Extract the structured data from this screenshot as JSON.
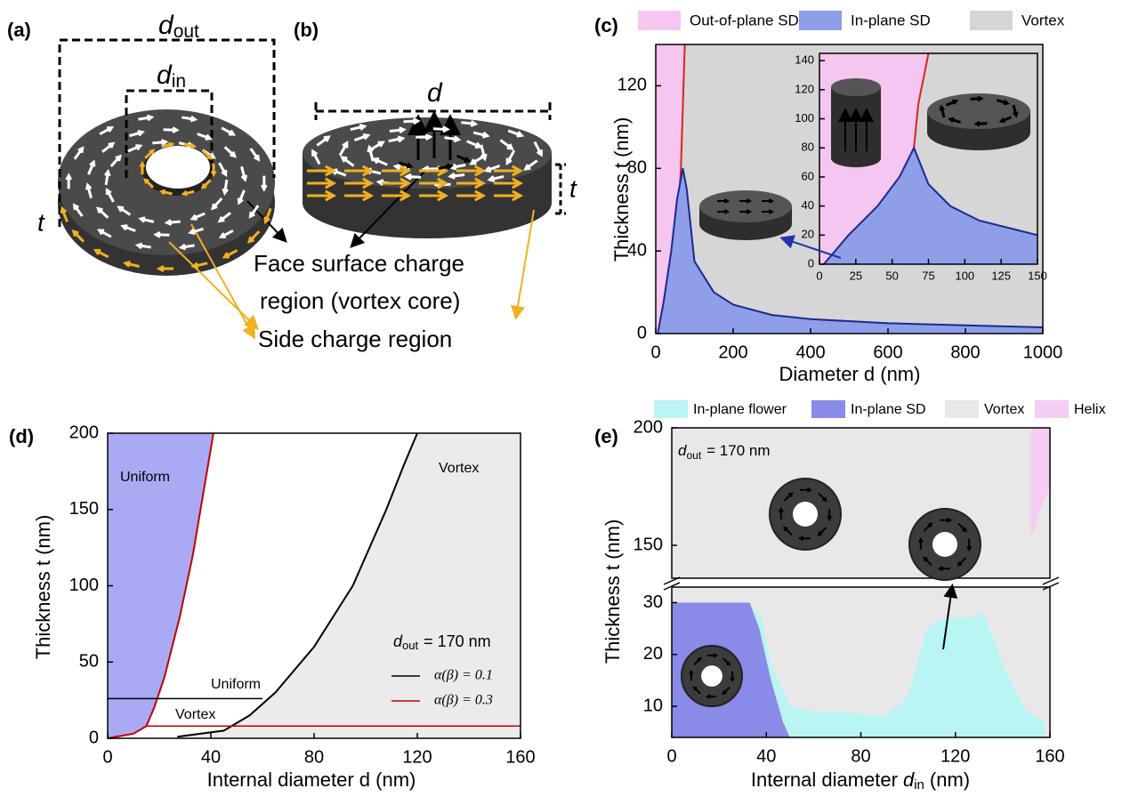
{
  "panel_a": {
    "label": "(a)",
    "outer_symbol": "d",
    "outer_subscript": "out",
    "inner_symbol": "d",
    "inner_subscript": "in",
    "thickness": "t"
  },
  "panel_b": {
    "label": "(b)",
    "diameter": "d",
    "thickness": "t"
  },
  "annotations": {
    "face_charge_line1": "Face surface charge",
    "face_charge_line2": "region (vortex core)",
    "side_charge": "Side charge region"
  },
  "chart_data": [
    {
      "type": "area",
      "label": "(c)",
      "xlabel": "Diameter d (nm)",
      "ylabel": "Thickness t (nm)",
      "xlim": [
        0,
        1000
      ],
      "ylim": [
        0,
        140
      ],
      "xticks": [
        0,
        200,
        400,
        600,
        800,
        1000
      ],
      "yticks": [
        0,
        40,
        80,
        120
      ],
      "series": [
        {
          "name": "Out-of-plane SD",
          "color": "#f5c6ef",
          "line_color": "#dd2222",
          "fill": "left",
          "x": [
            25,
            40,
            55,
            65,
            70,
            75
          ],
          "values": [
            0,
            20,
            50,
            80,
            110,
            140
          ]
        },
        {
          "name": "In-plane SD",
          "color": "#8e9ee9",
          "line_color": "#1b2a8c",
          "fill": "below",
          "x": [
            5,
            20,
            40,
            55,
            70,
            80,
            100,
            150,
            200,
            300,
            400,
            600,
            800,
            1000
          ],
          "values": [
            0,
            15,
            40,
            65,
            80,
            70,
            35,
            20,
            14,
            9,
            7,
            5,
            4,
            3
          ]
        },
        {
          "name": "Vortex",
          "color": "#d6d6d6",
          "fill": "background"
        }
      ],
      "inset": {
        "xlim": [
          0,
          150
        ],
        "ylim": [
          0,
          145
        ],
        "xticks": [
          0,
          25,
          50,
          75,
          100,
          125,
          150
        ],
        "yticks": [
          0,
          20,
          40,
          60,
          80,
          100,
          120,
          140
        ],
        "series": [
          {
            "color": "#d6d6d6",
            "fill": "background"
          },
          {
            "color": "#f5c6ef",
            "line_color": "#dd2222",
            "fill": "left",
            "x": [
              60,
              65,
              68,
              72,
              75
            ],
            "values": [
              0,
              80,
              110,
              130,
              145
            ]
          },
          {
            "color": "#8e9ee9",
            "line_color": "#1b2a8c",
            "fill": "below",
            "x": [
              3,
              20,
              40,
              55,
              65,
              75,
              90,
              110,
              130,
              150
            ],
            "values": [
              0,
              20,
              40,
              60,
              80,
              55,
              40,
              30,
              25,
              20
            ]
          }
        ]
      }
    },
    {
      "type": "line",
      "label": "(d)",
      "xlabel": "Internal diameter d (nm)",
      "ylabel": "Thickness t (nm)",
      "xlim": [
        0,
        160
      ],
      "ylim": [
        0,
        200
      ],
      "xticks": [
        0,
        40,
        80,
        120,
        160
      ],
      "yticks": [
        0,
        50,
        100,
        150,
        200
      ],
      "series": [
        {
          "name": "α(β) = 0.1",
          "color": "#000000",
          "fill": "right",
          "fill_color": "#ebebeb",
          "x": [
            27,
            45,
            55,
            65,
            80,
            95,
            108,
            115,
            120
          ],
          "values": [
            1,
            5,
            15,
            30,
            60,
            100,
            150,
            180,
            200
          ]
        },
        {
          "name": "α(β) = 0.3",
          "color": "#c00000",
          "fill": "left",
          "fill_color": "#a9aaf3",
          "x": [
            0,
            10,
            15,
            18,
            22,
            28,
            33,
            38,
            41
          ],
          "values": [
            0,
            3,
            8,
            20,
            40,
            80,
            120,
            170,
            200
          ]
        }
      ],
      "reference_lines": [
        {
          "color": "#000000",
          "x": [
            0,
            60
          ],
          "values": [
            26,
            26
          ]
        },
        {
          "color": "#c00000",
          "x": [
            15,
            160
          ],
          "values": [
            8,
            8
          ]
        }
      ],
      "annotations": [
        "Uniform",
        "Vortex",
        "Uniform",
        "Vortex"
      ],
      "d_out": {
        "symbol": "d",
        "subscript": "out",
        "text": "= 170 nm"
      }
    },
    {
      "type": "area",
      "label": "(e)",
      "xlabel": [
        "Internal diameter",
        "d",
        "in",
        "(nm)"
      ],
      "ylabel": "Thickness t (nm)",
      "xlim": [
        0,
        160
      ],
      "xticks": [
        0,
        40,
        80,
        120,
        160
      ],
      "ylim": [
        4,
        33
      ],
      "yticks": [
        10,
        20,
        30
      ],
      "ylim_upper": [
        136,
        200
      ],
      "yticks_upper": [
        150,
        200
      ],
      "series": [
        {
          "name": "In-plane flower",
          "color": "#b8f5f3",
          "fill": "below",
          "x": [
            33,
            38,
            42,
            50,
            60,
            70,
            80,
            90,
            100,
            108,
            115,
            125,
            132,
            140,
            150,
            158
          ],
          "values": [
            30,
            27,
            18,
            10,
            9,
            9,
            8.5,
            8,
            12,
            25,
            27,
            27,
            28,
            18,
            9,
            7
          ]
        },
        {
          "name": "In-plane SD",
          "color": "#8a8ae8",
          "fill": "below",
          "x": [
            0,
            33,
            37,
            42,
            47,
            50
          ],
          "values": [
            30,
            30,
            25,
            15,
            7,
            4
          ]
        },
        {
          "name": "Vortex",
          "color": "#e8e8e8",
          "fill": "background"
        },
        {
          "name": "Helix",
          "color": "#f4cdf2",
          "fill": "above",
          "axis": "upper",
          "x": [
            152,
            154,
            156,
            160
          ],
          "values": [
            155,
            158,
            165,
            175
          ]
        }
      ],
      "d_out": {
        "symbol": "d",
        "subscript": "out",
        "text": "= 170 nm"
      }
    }
  ]
}
